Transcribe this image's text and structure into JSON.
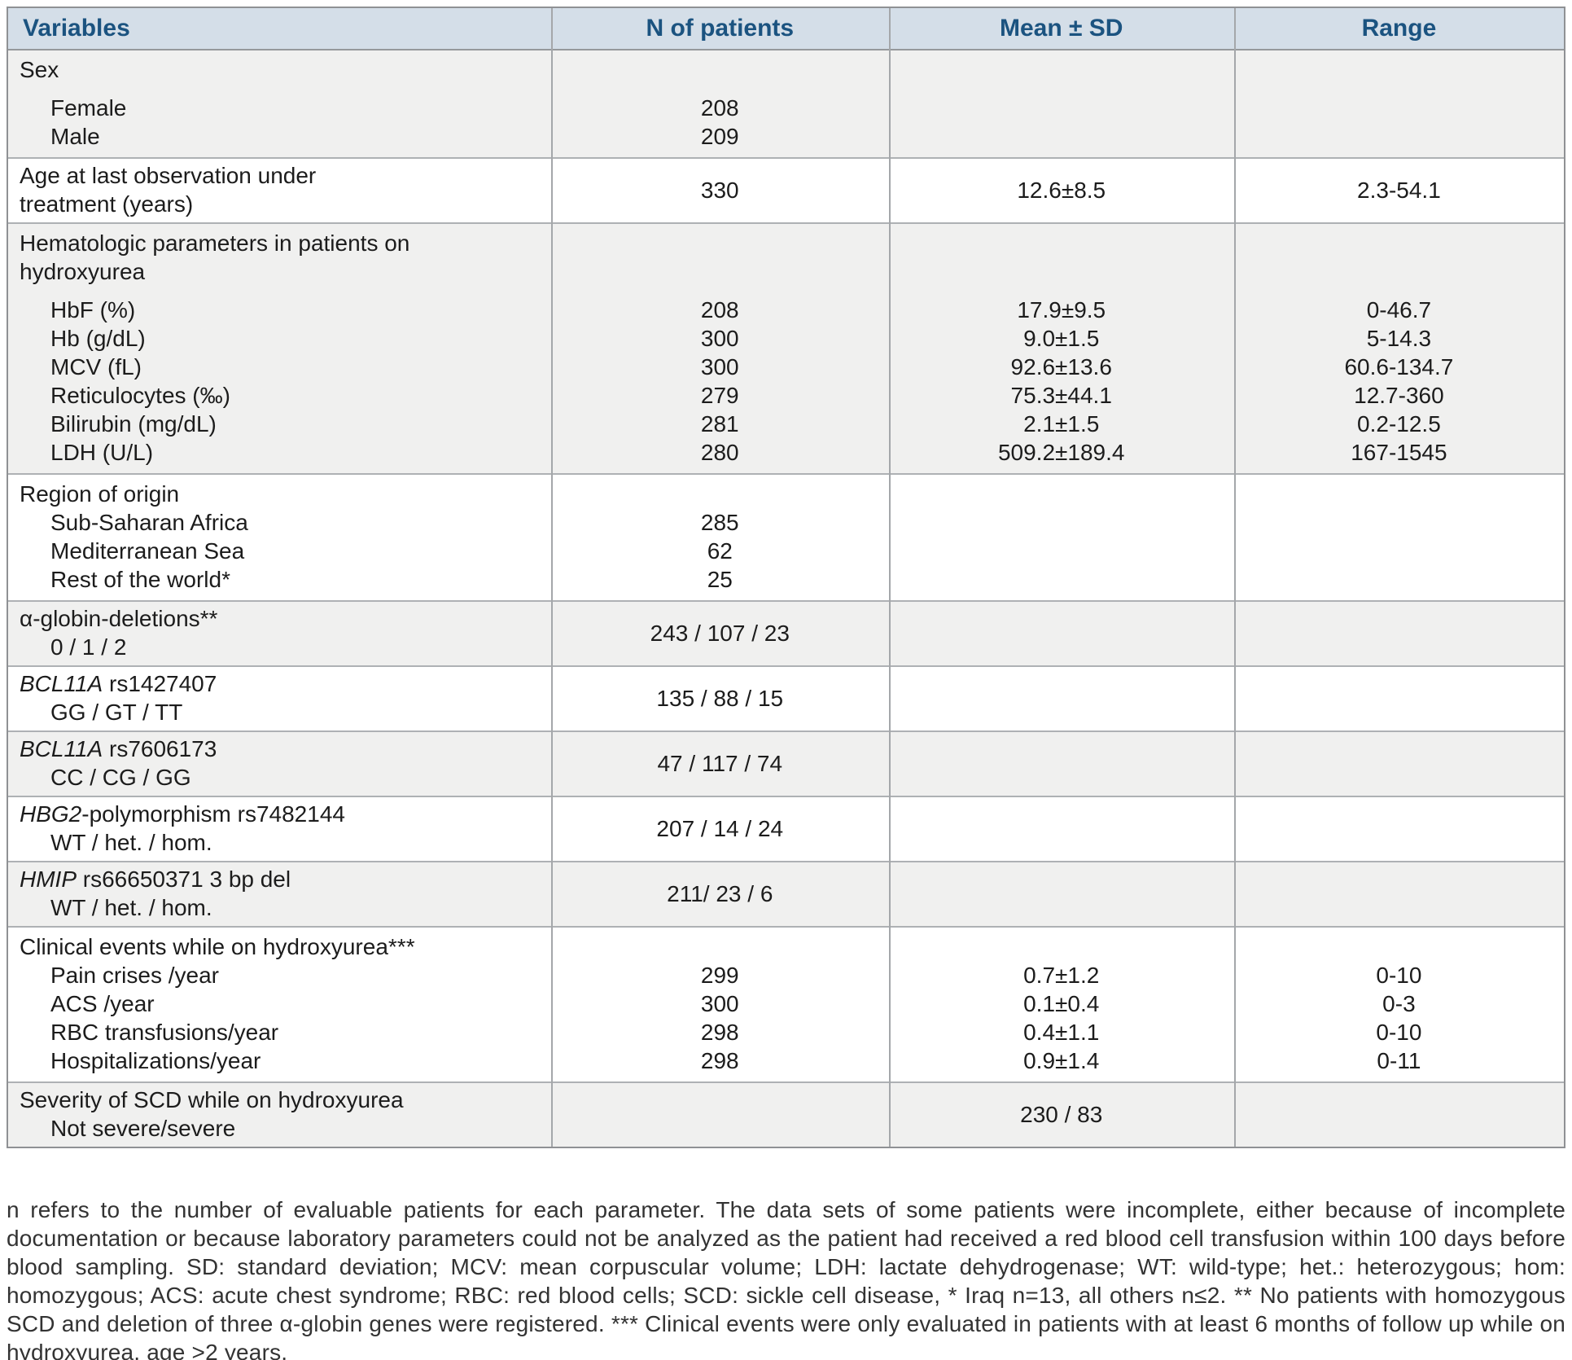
{
  "table": {
    "columns": [
      {
        "label": "Variables"
      },
      {
        "label": "N of patients"
      },
      {
        "label": "Mean ± SD"
      },
      {
        "label": "Range"
      }
    ],
    "groups": [
      {
        "type": "items",
        "shade": "gray",
        "gap": true,
        "title_lines": [
          "Sex"
        ],
        "items": [
          {
            "label": "Female",
            "n": "208"
          },
          {
            "label": "Male",
            "n": "209"
          }
        ]
      },
      {
        "type": "span",
        "shade": "white",
        "title_lines": [
          "Age at last observation under",
          "treatment (years)"
        ],
        "n": "330",
        "mean": "12.6±8.5",
        "range": "2.3-54.1"
      },
      {
        "type": "items",
        "shade": "gray",
        "gap": true,
        "title_lines": [
          "Hematologic parameters in patients on",
          "hydroxyurea"
        ],
        "items": [
          {
            "label": "HbF (%)",
            "n": "208",
            "mean": "17.9±9.5",
            "range": "0-46.7"
          },
          {
            "label": "Hb (g/dL)",
            "n": "300",
            "mean": "9.0±1.5",
            "range": "5-14.3"
          },
          {
            "label": "MCV (fL)",
            "n": "300",
            "mean": "92.6±13.6",
            "range": "60.6-134.7"
          },
          {
            "label": "Reticulocytes (‰)",
            "n": "279",
            "mean": "75.3±44.1",
            "range": "12.7-360"
          },
          {
            "label": "Bilirubin (mg/dL)",
            "n": "281",
            "mean": "2.1±1.5",
            "range": "0.2-12.5"
          },
          {
            "label": "LDH (U/L)",
            "n": "280",
            "mean": "509.2±189.4",
            "range": "167-1545"
          }
        ]
      },
      {
        "type": "items",
        "shade": "white",
        "title_lines": [
          "Region of origin"
        ],
        "items": [
          {
            "label": "Sub-Saharan Africa",
            "n": "285"
          },
          {
            "label": "Mediterranean Sea",
            "n": "62"
          },
          {
            "label": "Rest of the world*",
            "n": "25"
          }
        ]
      },
      {
        "type": "span",
        "shade": "gray",
        "title_lines": [
          "α-globin-deletions**"
        ],
        "subtitle": "0 / 1 / 2",
        "n": "243 / 107 / 23"
      },
      {
        "type": "span",
        "shade": "white",
        "title_italic": "BCL11A",
        "title_lines": [
          " rs1427407"
        ],
        "subtitle": "GG / GT / TT",
        "n": "135 / 88 / 15"
      },
      {
        "type": "span",
        "shade": "gray",
        "title_italic": "BCL11A",
        "title_lines": [
          " rs7606173"
        ],
        "subtitle": "CC / CG / GG",
        "n": "47 / 117 / 74"
      },
      {
        "type": "span",
        "shade": "white",
        "title_italic": "HBG2",
        "title_lines": [
          "-polymorphism rs7482144"
        ],
        "subtitle": "WT / het. / hom.",
        "n": "207 / 14 / 24"
      },
      {
        "type": "span",
        "shade": "gray",
        "title_italic": "HMIP",
        "title_lines": [
          " rs66650371 3 bp del"
        ],
        "subtitle": "WT / het. / hom.",
        "n": "211/ 23 / 6"
      },
      {
        "type": "items",
        "shade": "white",
        "title_lines": [
          "Clinical events while on hydroxyurea***"
        ],
        "items": [
          {
            "label": "Pain crises /year",
            "n": "299",
            "mean": "0.7±1.2",
            "range": "0-10"
          },
          {
            "label": "ACS /year",
            "n": "300",
            "mean": "0.1±0.4",
            "range": "0-3"
          },
          {
            "label": "RBC transfusions/year",
            "n": "298",
            "mean": "0.4±1.1",
            "range": "0-10"
          },
          {
            "label": "Hospitalizations/year",
            "n": "298",
            "mean": "0.9±1.4",
            "range": "0-11"
          }
        ]
      },
      {
        "type": "span",
        "shade": "gray",
        "title_lines": [
          "Severity of SCD while on hydroxyurea"
        ],
        "subtitle": "Not severe/severe",
        "mean": "230 / 83"
      }
    ]
  },
  "footnote": {
    "text": "n refers to the number of evaluable patients for each parameter. The data sets of some patients were incomplete, either because of incomplete documentation or because laboratory parameters could not be analyzed as the patient had received a red blood cell transfusion within 100 days before blood sampling. SD: standard deviation; MCV: mean corpuscular volume; LDH: lactate dehydrogenase; WT: wild-type; het.: heterozygous; hom: homozygous; ACS: acute chest syndrome; RBC: red blood cells; SCD: sickle cell disease, * Iraq n=13, all others n≤2. ** No patients with homozygous SCD and deletion of three α-globin genes were registered. *** Clinical events were only evaluated in patients with at least 6 months of follow up while on hydroxyurea, age >2 years."
  }
}
